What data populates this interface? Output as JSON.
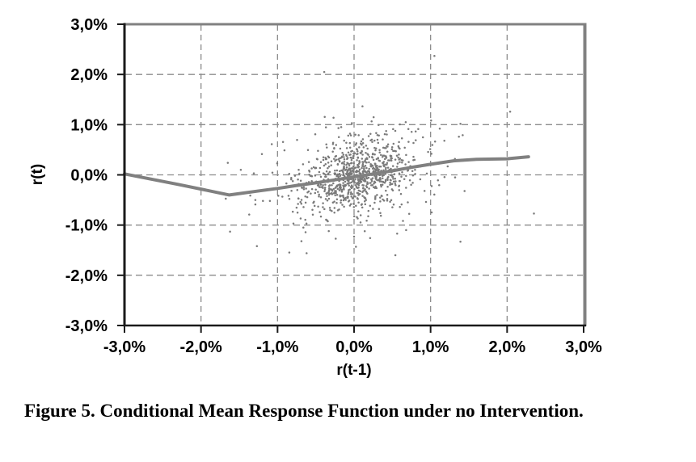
{
  "figure": {
    "caption": "Figure 5. Conditional Mean Response Function under no Intervention."
  },
  "colors": {
    "point": "#7a7a7a",
    "mean_line": "#808080",
    "grid": "#8c8c8c",
    "axis": "#1a1a1a",
    "plot_border": "#808080",
    "background": "#ffffff",
    "text": "#000000"
  },
  "chart_data": {
    "type": "scatter",
    "title": "",
    "xlabel": "r(t-1)",
    "ylabel": "r(t)",
    "xlim": [
      -3,
      3
    ],
    "ylim": [
      -3,
      3
    ],
    "grid": true,
    "grid_style": "dashed",
    "x_ticks": {
      "values": [
        -3,
        -2,
        -1,
        0,
        1,
        2,
        3
      ],
      "labels": [
        "-3,0%",
        "-2,0%",
        "-1,0%",
        "0,0%",
        "1,0%",
        "2,0%",
        "3,0%"
      ]
    },
    "y_ticks": {
      "values": [
        -3,
        -2,
        -1,
        0,
        1,
        2,
        3
      ],
      "labels": [
        "-3,0%",
        "-2,0%",
        "-1,0%",
        "0,0%",
        "1,0%",
        "2,0%",
        "3,0%"
      ]
    },
    "mean_response_line": [
      [
        -3.0,
        0.02
      ],
      [
        -2.3,
        -0.19
      ],
      [
        -1.63,
        -0.4
      ],
      [
        -1.2,
        -0.31
      ],
      [
        -1.0,
        -0.27
      ],
      [
        -0.75,
        -0.21
      ],
      [
        -0.5,
        -0.16
      ],
      [
        -0.25,
        -0.1
      ],
      [
        0.0,
        -0.04
      ],
      [
        0.25,
        0.02
      ],
      [
        0.5,
        0.08
      ],
      [
        0.75,
        0.15
      ],
      [
        1.0,
        0.21
      ],
      [
        1.3,
        0.28
      ],
      [
        1.6,
        0.31
      ],
      [
        2.0,
        0.32
      ],
      [
        2.28,
        0.36
      ]
    ],
    "scatter": {
      "description": "Dense cloud of ~950 unlabeled returns pairs centered near origin, mild positive correlation",
      "seed": 20240605,
      "correlation": 0.3,
      "clip": [
        1.7,
        1.75
      ],
      "components": [
        {
          "n": 690,
          "center": [
            0.03,
            -0.02
          ],
          "sd": [
            0.33,
            0.35
          ]
        },
        {
          "n": 240,
          "center": [
            0.0,
            0.0
          ],
          "sd": [
            0.62,
            0.55
          ]
        }
      ],
      "outliers": [
        [
          -0.39,
          2.05
        ],
        [
          1.05,
          2.37
        ],
        [
          2.04,
          1.26
        ],
        [
          2.35,
          -0.77
        ],
        [
          1.39,
          -1.33
        ],
        [
          1.37,
          0.76
        ],
        [
          1.32,
          -0.05
        ],
        [
          1.12,
          0.92
        ],
        [
          1.18,
          0.68
        ],
        [
          -1.65,
          0.24
        ],
        [
          -1.48,
          0.1
        ],
        [
          -1.31,
          0.03
        ],
        [
          -1.29,
          -0.5
        ],
        [
          -1.19,
          -0.52
        ],
        [
          -1.1,
          -0.52
        ],
        [
          -1.37,
          -0.79
        ],
        [
          -1.62,
          -1.13
        ],
        [
          -1.27,
          -1.42
        ],
        [
          -0.62,
          -1.56
        ],
        [
          -0.24,
          -1.27
        ],
        [
          0.0,
          -1.23
        ],
        [
          0.21,
          -1.26
        ],
        [
          0.54,
          -1.6
        ],
        [
          0.68,
          -1.1
        ],
        [
          1.42,
          0.79
        ]
      ]
    }
  }
}
